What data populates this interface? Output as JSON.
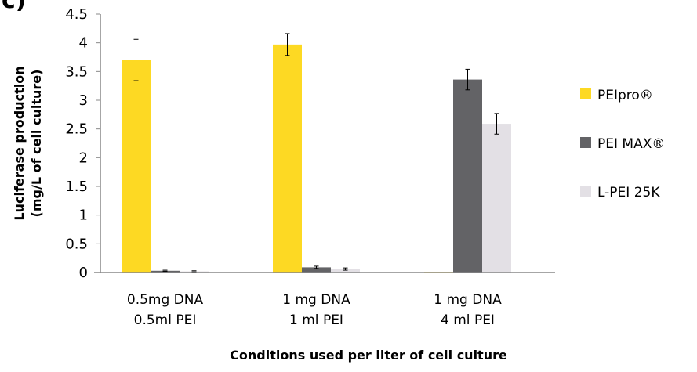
{
  "panel_label": "c)",
  "chart_data": {
    "type": "bar",
    "title": "",
    "xlabel": "Conditions used per liter of cell culture",
    "ylabel_lines": [
      "Luciferase production",
      "(mg/L of cell culture)"
    ],
    "ylim": [
      0,
      4.5
    ],
    "yticks": [
      "0",
      "0.5",
      "1",
      "1.5",
      "2",
      "2.5",
      "3",
      "3.5",
      "4",
      "4.5"
    ],
    "grid": false,
    "legend_position": "right",
    "categories": [
      [
        "0.5mg DNA",
        "0.5ml PEI"
      ],
      [
        "1 mg DNA",
        "1 ml PEI"
      ],
      [
        "1 mg DNA",
        "4 ml PEI"
      ]
    ],
    "series": [
      {
        "name": "PEIpro®",
        "color": "#FDD923",
        "values": [
          3.7,
          3.97,
          0.01
        ],
        "errors": [
          0.36,
          0.19,
          0.0
        ]
      },
      {
        "name": "PEI MAX®",
        "color": "#636366",
        "values": [
          0.03,
          0.09,
          3.36
        ],
        "errors": [
          0.01,
          0.02,
          0.18
        ]
      },
      {
        "name": "L-PEI 25K",
        "color": "#E3E0E5",
        "values": [
          0.02,
          0.06,
          2.59
        ],
        "errors": [
          0.01,
          0.02,
          0.18
        ]
      }
    ]
  }
}
